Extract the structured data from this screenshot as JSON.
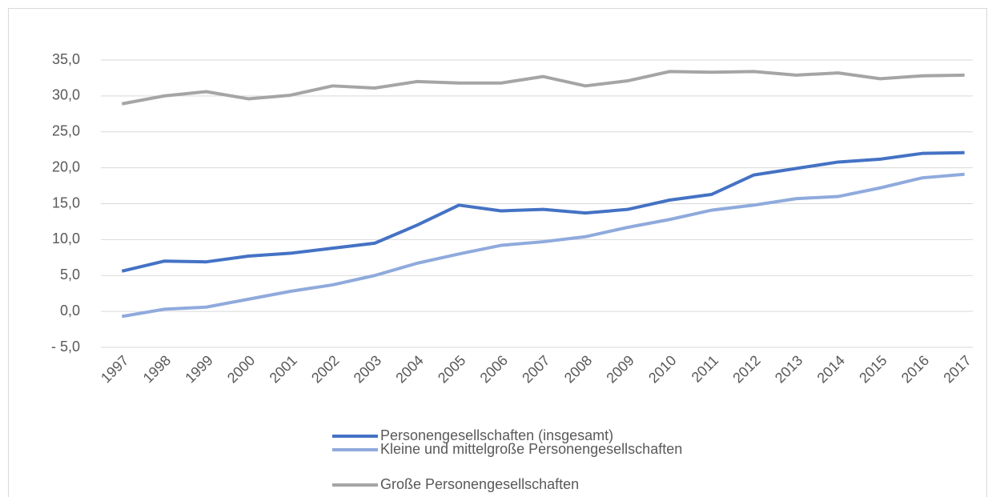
{
  "chart_data": {
    "type": "line",
    "categories": [
      "1997",
      "1998",
      "1999",
      "2000",
      "2001",
      "2002",
      "2003",
      "2004",
      "2005",
      "2006",
      "2007",
      "2008",
      "2009",
      "2010",
      "2011",
      "2012",
      "2013",
      "2014",
      "2015",
      "2016",
      "2017"
    ],
    "series": [
      {
        "name": "Personengesellschaften (insgesamt)",
        "color": "#4472c4",
        "values": [
          5.6,
          7.0,
          6.9,
          7.7,
          8.1,
          8.8,
          9.5,
          12.0,
          14.8,
          14.0,
          14.2,
          13.7,
          14.2,
          15.5,
          16.3,
          19.0,
          19.9,
          20.8,
          21.2,
          22.0,
          22.1
        ]
      },
      {
        "name": "Kleine und mittelgroße Personengesellschaften",
        "color": "#8faadc",
        "values": [
          -0.7,
          0.3,
          0.6,
          1.7,
          2.8,
          3.7,
          5.0,
          6.7,
          8.0,
          9.2,
          9.7,
          10.4,
          11.7,
          12.8,
          14.1,
          14.8,
          15.7,
          16.0,
          17.2,
          18.6,
          19.1
        ]
      },
      {
        "name": "Große Personengesellschaften",
        "color": "#a5a5a5",
        "values": [
          28.9,
          30.0,
          30.6,
          29.6,
          30.1,
          31.4,
          31.1,
          32.0,
          31.8,
          31.8,
          32.7,
          31.4,
          32.1,
          33.4,
          33.3,
          33.4,
          32.9,
          33.2,
          32.4,
          32.8,
          32.9
        ]
      }
    ],
    "ylim": [
      -5,
      35
    ],
    "yticks": [
      {
        "value": -5,
        "label": "- 5,0"
      },
      {
        "value": 0,
        "label": "0,0"
      },
      {
        "value": 5,
        "label": "5,0"
      },
      {
        "value": 10,
        "label": "10,0"
      },
      {
        "value": 15,
        "label": "15,0"
      },
      {
        "value": 20,
        "label": "20,0"
      },
      {
        "value": 25,
        "label": "25,0"
      },
      {
        "value": 30,
        "label": "30,0"
      },
      {
        "value": 35,
        "label": "35,0"
      }
    ],
    "grid": true,
    "legend": "bottom"
  }
}
